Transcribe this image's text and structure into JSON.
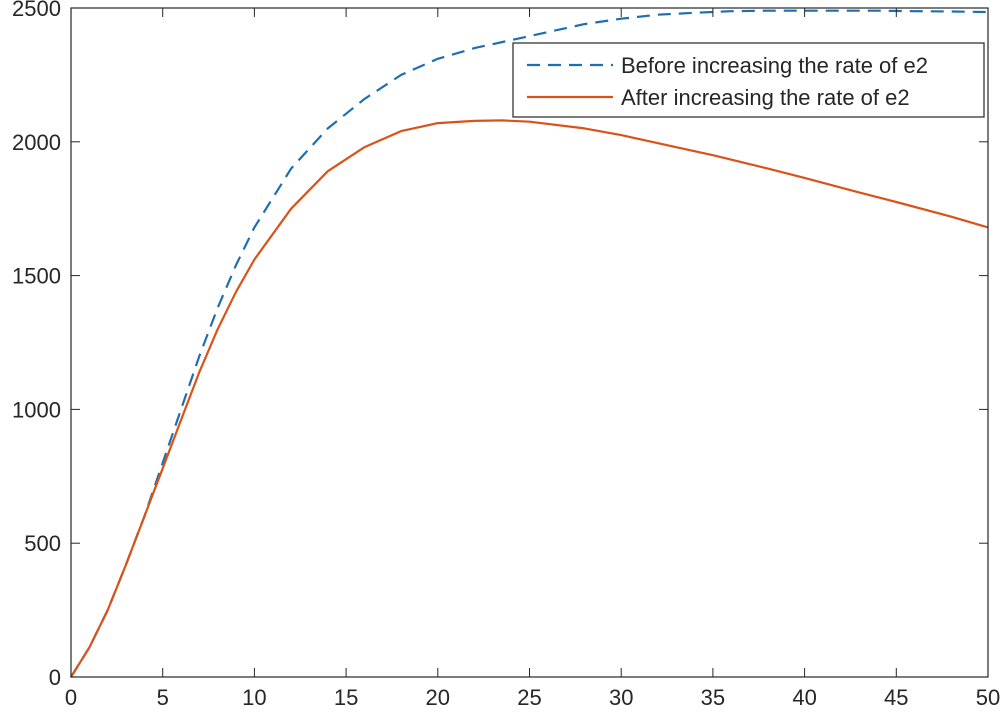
{
  "chart_data": {
    "type": "line",
    "title": "",
    "xlabel": "",
    "ylabel": "",
    "xlim": [
      0,
      50
    ],
    "ylim": [
      0,
      2500
    ],
    "xticks": [
      0,
      5,
      10,
      15,
      20,
      25,
      30,
      35,
      40,
      45,
      50
    ],
    "yticks": [
      0,
      500,
      1000,
      1500,
      2000,
      2500
    ],
    "xtick_labels": [
      "0",
      "5",
      "10",
      "15",
      "20",
      "25",
      "30",
      "35",
      "40",
      "45",
      "50"
    ],
    "ytick_labels": [
      "0",
      "500",
      "1000",
      "1500",
      "2000",
      "2500"
    ],
    "grid": false,
    "legend_position": "top-right",
    "series": [
      {
        "name": "Before increasing the rate of e2",
        "color": "#1f6fb0",
        "dash": "dashed",
        "x": [
          0,
          1,
          2,
          3,
          4,
          5,
          6,
          7,
          8,
          9,
          10,
          12,
          14,
          16,
          18,
          20,
          22,
          24,
          26,
          28,
          30,
          32,
          34,
          36,
          38,
          40,
          42,
          44,
          46,
          48,
          50
        ],
        "y": [
          0,
          110,
          250,
          420,
          600,
          800,
          1000,
          1200,
          1380,
          1540,
          1680,
          1900,
          2050,
          2160,
          2250,
          2310,
          2350,
          2380,
          2410,
          2440,
          2460,
          2475,
          2482,
          2488,
          2490,
          2490,
          2490,
          2490,
          2488,
          2487,
          2485
        ]
      },
      {
        "name": "After increasing the rate of e2",
        "color": "#d95319",
        "dash": "solid",
        "x": [
          0,
          1,
          2,
          3,
          4,
          5,
          6,
          7,
          8,
          9,
          10,
          12,
          14,
          16,
          18,
          20,
          22,
          23.5,
          25,
          28,
          30,
          33,
          35,
          38,
          40,
          43,
          45,
          48,
          50
        ],
        "y": [
          0,
          110,
          250,
          420,
          600,
          780,
          960,
          1140,
          1300,
          1440,
          1560,
          1750,
          1890,
          1980,
          2040,
          2070,
          2078,
          2080,
          2075,
          2050,
          2025,
          1980,
          1950,
          1900,
          1865,
          1810,
          1775,
          1720,
          1680
        ]
      }
    ]
  }
}
